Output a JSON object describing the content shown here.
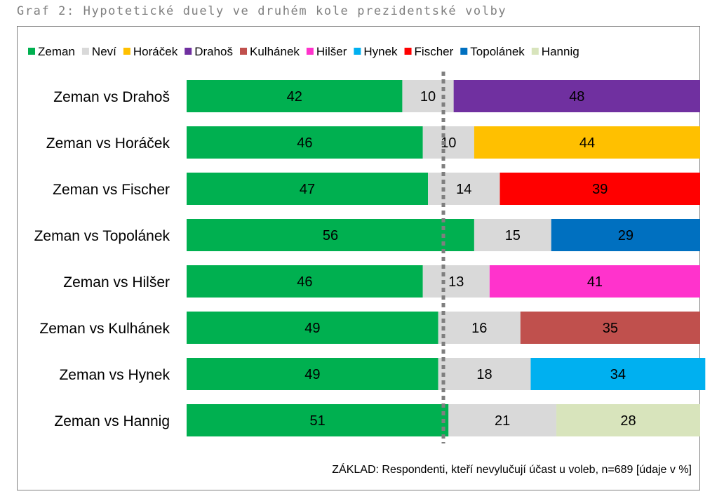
{
  "page": {
    "title": "Graf 2: Hypotetické duely ve druhém kole prezidentské volby",
    "footnote": "ZÁKLAD: Respondenti, kteří nevylučují účast u voleb, n=689 [údaje v %]"
  },
  "chart_data": {
    "type": "bar",
    "orientation": "horizontal",
    "stacked": true,
    "legend_placement": "top",
    "legend": [
      {
        "name": "Zeman",
        "color": "#00b050"
      },
      {
        "name": "Neví",
        "color": "#d9d9d9"
      },
      {
        "name": "Horáček",
        "color": "#ffc000"
      },
      {
        "name": "Drahoš",
        "color": "#7030a0"
      },
      {
        "name": "Kulhánek",
        "color": "#c0504d"
      },
      {
        "name": "Hilšer",
        "color": "#ff33cc"
      },
      {
        "name": "Hynek",
        "color": "#00b0f0"
      },
      {
        "name": "Fischer",
        "color": "#ff0000"
      },
      {
        "name": "Topolánek",
        "color": "#0070c0"
      },
      {
        "name": "Hannig",
        "color": "#d8e4bc"
      }
    ],
    "categories": [
      "Zeman vs Drahoš",
      "Zeman vs Horáček",
      "Zeman vs Fischer",
      "Zeman vs Topolánek",
      "Zeman vs Hilšer",
      "Zeman vs Kulhánek",
      "Zeman vs Hynek",
      "Zeman vs Hannig"
    ],
    "rows": [
      {
        "zeman": 42,
        "nevi": 10,
        "opponent": "Drahoš",
        "opponent_value": 48
      },
      {
        "zeman": 46,
        "nevi": 10,
        "opponent": "Horáček",
        "opponent_value": 44
      },
      {
        "zeman": 47,
        "nevi": 14,
        "opponent": "Fischer",
        "opponent_value": 39
      },
      {
        "zeman": 56,
        "nevi": 15,
        "opponent": "Topolánek",
        "opponent_value": 29
      },
      {
        "zeman": 46,
        "nevi": 13,
        "opponent": "Hilšer",
        "opponent_value": 41
      },
      {
        "zeman": 49,
        "nevi": 16,
        "opponent": "Kulhánek",
        "opponent_value": 35
      },
      {
        "zeman": 49,
        "nevi": 18,
        "opponent": "Hynek",
        "opponent_value": 34
      },
      {
        "zeman": 51,
        "nevi": 21,
        "opponent": "Hannig",
        "opponent_value": 28
      }
    ],
    "reference_line": {
      "value": 50,
      "style": "dotted",
      "color": "#7f7f7f"
    },
    "xlim": [
      0,
      100
    ],
    "grid": false
  }
}
